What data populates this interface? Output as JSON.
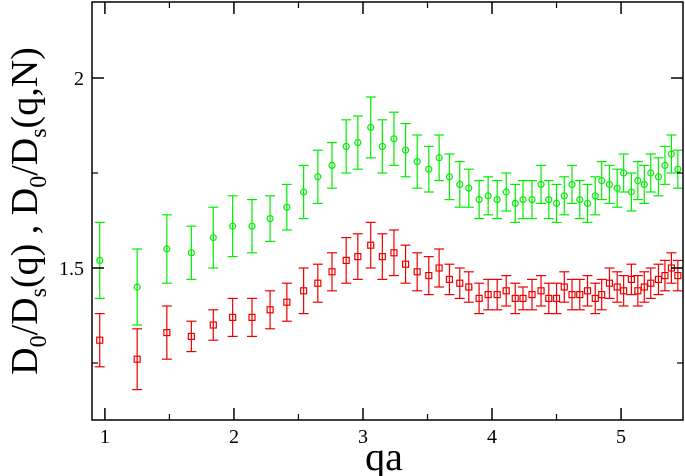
{
  "chart_data": {
    "type": "scatter",
    "xlabel": "qa",
    "ylabel_parts": [
      "D",
      "0",
      "/D",
      "s",
      "(q) , D",
      "0",
      "/D",
      "s",
      "(q,N)"
    ],
    "xlim": [
      0.9,
      5.48
    ],
    "ylim": [
      1.1,
      2.2
    ],
    "x_ticks": [
      1,
      2,
      3,
      4,
      5
    ],
    "x_tick_labels": [
      "1",
      "2",
      "3",
      "4",
      "5"
    ],
    "y_ticks": [
      1.5,
      2.0
    ],
    "y_tick_labels": [
      "1.5",
      "2"
    ],
    "grid": false,
    "legend": "none",
    "series": [
      {
        "marker": "circle",
        "color": "#00ee00",
        "x": [
          0.96,
          1.25,
          1.48,
          1.67,
          1.84,
          1.99,
          2.14,
          2.28,
          2.41,
          2.54,
          2.65,
          2.76,
          2.87,
          2.96,
          3.06,
          3.15,
          3.24,
          3.33,
          3.42,
          3.51,
          3.59,
          3.67,
          3.75,
          3.82,
          3.9,
          3.97,
          4.04,
          4.11,
          4.18,
          4.24,
          4.31,
          4.38,
          4.44,
          4.5,
          4.56,
          4.62,
          4.68,
          4.74,
          4.8,
          4.85,
          4.91,
          4.97,
          5.02,
          5.08,
          5.13,
          5.18,
          5.23,
          5.29,
          5.34,
          5.39,
          5.44
        ],
        "y": [
          1.52,
          1.45,
          1.55,
          1.54,
          1.58,
          1.61,
          1.61,
          1.63,
          1.66,
          1.7,
          1.74,
          1.77,
          1.82,
          1.83,
          1.87,
          1.82,
          1.84,
          1.81,
          1.78,
          1.76,
          1.79,
          1.74,
          1.72,
          1.71,
          1.68,
          1.69,
          1.68,
          1.7,
          1.67,
          1.68,
          1.68,
          1.72,
          1.68,
          1.67,
          1.69,
          1.72,
          1.68,
          1.67,
          1.69,
          1.73,
          1.72,
          1.71,
          1.75,
          1.7,
          1.73,
          1.72,
          1.75,
          1.74,
          1.77,
          1.8,
          1.76
        ],
        "err": [
          0.1,
          0.1,
          0.09,
          0.07,
          0.08,
          0.08,
          0.07,
          0.06,
          0.06,
          0.07,
          0.07,
          0.06,
          0.07,
          0.07,
          0.08,
          0.07,
          0.07,
          0.07,
          0.07,
          0.06,
          0.06,
          0.06,
          0.06,
          0.05,
          0.05,
          0.05,
          0.05,
          0.05,
          0.05,
          0.05,
          0.05,
          0.05,
          0.05,
          0.05,
          0.05,
          0.05,
          0.05,
          0.05,
          0.05,
          0.05,
          0.05,
          0.05,
          0.05,
          0.05,
          0.05,
          0.05,
          0.05,
          0.05,
          0.05,
          0.05,
          0.05
        ]
      },
      {
        "marker": "square",
        "color": "#ee0000",
        "x": [
          0.96,
          1.25,
          1.48,
          1.67,
          1.84,
          1.99,
          2.14,
          2.28,
          2.41,
          2.54,
          2.65,
          2.76,
          2.87,
          2.96,
          3.06,
          3.15,
          3.24,
          3.33,
          3.42,
          3.51,
          3.59,
          3.67,
          3.75,
          3.82,
          3.9,
          3.97,
          4.04,
          4.11,
          4.18,
          4.24,
          4.31,
          4.38,
          4.44,
          4.5,
          4.56,
          4.62,
          4.68,
          4.74,
          4.8,
          4.85,
          4.91,
          4.97,
          5.02,
          5.08,
          5.13,
          5.18,
          5.23,
          5.29,
          5.34,
          5.39,
          5.44
        ],
        "y": [
          1.31,
          1.26,
          1.33,
          1.32,
          1.35,
          1.37,
          1.37,
          1.39,
          1.41,
          1.44,
          1.46,
          1.49,
          1.52,
          1.53,
          1.56,
          1.53,
          1.54,
          1.51,
          1.49,
          1.48,
          1.5,
          1.47,
          1.46,
          1.45,
          1.42,
          1.43,
          1.43,
          1.44,
          1.42,
          1.42,
          1.43,
          1.44,
          1.42,
          1.42,
          1.45,
          1.43,
          1.43,
          1.44,
          1.42,
          1.43,
          1.46,
          1.45,
          1.44,
          1.47,
          1.44,
          1.45,
          1.46,
          1.47,
          1.48,
          1.5,
          1.48
        ],
        "err": [
          0.07,
          0.08,
          0.07,
          0.04,
          0.04,
          0.05,
          0.05,
          0.05,
          0.05,
          0.06,
          0.05,
          0.05,
          0.06,
          0.06,
          0.06,
          0.06,
          0.06,
          0.05,
          0.05,
          0.05,
          0.05,
          0.04,
          0.04,
          0.04,
          0.04,
          0.04,
          0.04,
          0.04,
          0.04,
          0.03,
          0.04,
          0.04,
          0.04,
          0.04,
          0.04,
          0.04,
          0.04,
          0.04,
          0.04,
          0.04,
          0.04,
          0.04,
          0.04,
          0.04,
          0.04,
          0.04,
          0.04,
          0.04,
          0.04,
          0.04,
          0.04
        ]
      }
    ]
  }
}
